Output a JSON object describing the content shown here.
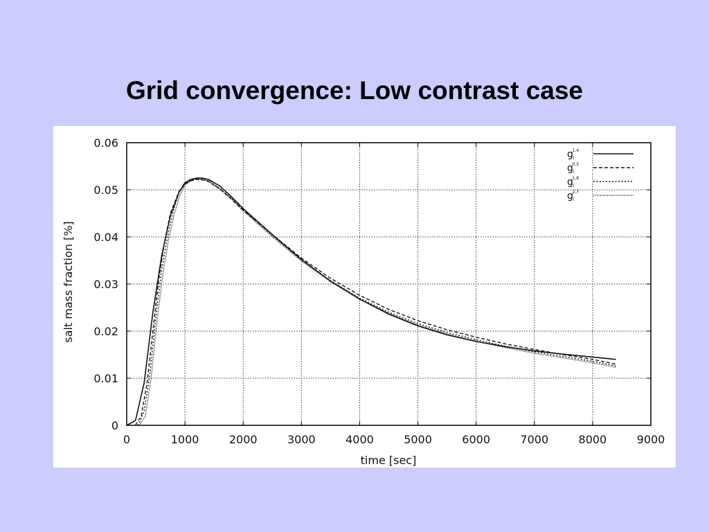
{
  "slide": {
    "title": "Grid convergence: Low contrast case"
  },
  "chart_data": {
    "type": "line",
    "title": "",
    "xlabel": "time [sec]",
    "ylabel": "salt mass fraction [%]",
    "xlim": [
      0,
      9000
    ],
    "ylim": [
      0,
      0.06
    ],
    "xticks": [
      0,
      1000,
      2000,
      3000,
      4000,
      5000,
      6000,
      7000,
      8000,
      9000
    ],
    "yticks": [
      0,
      0.01,
      0.02,
      0.03,
      0.04,
      0.05,
      0.06
    ],
    "xtick_labels": [
      "0",
      "1000",
      "2000",
      "3000",
      "4000",
      "5000",
      "6000",
      "7000",
      "8000",
      "9000"
    ],
    "ytick_labels": [
      "0",
      "0.01",
      "0.02",
      "0.03",
      "0.04",
      "0.05",
      "0.06"
    ],
    "grid": true,
    "legend_position": "top-right",
    "series": [
      {
        "name": "g^{1,4}",
        "legend_base": "g",
        "legend_sub": "l",
        "legend_sup": "1,4",
        "dash": "solid",
        "x": [
          0,
          150,
          300,
          450,
          600,
          750,
          900,
          1000,
          1100,
          1200,
          1300,
          1400,
          1600,
          1800,
          2000,
          2500,
          3000,
          3500,
          4000,
          4500,
          5000,
          5500,
          6000,
          6500,
          7000,
          7500,
          8000,
          8400
        ],
        "y": [
          0,
          0.001,
          0.009,
          0.024,
          0.036,
          0.0445,
          0.0495,
          0.0515,
          0.0522,
          0.0525,
          0.0525,
          0.0522,
          0.0508,
          0.0485,
          0.046,
          0.0405,
          0.0352,
          0.0306,
          0.0268,
          0.0236,
          0.0211,
          0.0192,
          0.0178,
          0.0167,
          0.0158,
          0.0151,
          0.0145,
          0.014
        ]
      },
      {
        "name": "g^{0,5}",
        "legend_base": "g",
        "legend_sub": "l",
        "legend_sup": "0,5",
        "dash": "dashed",
        "x": [
          150,
          250,
          350,
          450,
          550,
          650,
          750,
          900,
          1000,
          1100,
          1200,
          1300,
          1400,
          1600,
          1800,
          2000,
          2500,
          3000,
          3500,
          4000,
          4500,
          5000,
          5500,
          6000,
          6500,
          7000,
          7500,
          8000,
          8400
        ],
        "y": [
          0,
          0.002,
          0.009,
          0.02,
          0.031,
          0.039,
          0.045,
          0.0497,
          0.0512,
          0.0519,
          0.0522,
          0.0521,
          0.0518,
          0.0502,
          0.048,
          0.0457,
          0.0405,
          0.0355,
          0.0312,
          0.0276,
          0.0246,
          0.0222,
          0.0203,
          0.0187,
          0.0173,
          0.0161,
          0.015,
          0.014,
          0.013
        ]
      },
      {
        "name": "g^{1,8}",
        "legend_base": "g",
        "legend_sub": "l",
        "legend_sup": "1,8",
        "dash": "dotted",
        "x": [
          200,
          300,
          400,
          500,
          600,
          700,
          800,
          900,
          1000,
          1100,
          1200,
          1300,
          1400,
          1600,
          1800,
          2000,
          2500,
          3000,
          3500,
          4000,
          4500,
          5000,
          5500,
          6000,
          6500,
          7000,
          7500,
          8000,
          8400
        ],
        "y": [
          0,
          0.003,
          0.011,
          0.023,
          0.033,
          0.04,
          0.0455,
          0.0495,
          0.0512,
          0.052,
          0.0524,
          0.0523,
          0.0519,
          0.0503,
          0.0482,
          0.0458,
          0.0403,
          0.0351,
          0.0307,
          0.027,
          0.024,
          0.0216,
          0.0197,
          0.0182,
          0.0168,
          0.0156,
          0.0146,
          0.0136,
          0.0126
        ]
      },
      {
        "name": "g^{2,7}",
        "legend_base": "g",
        "legend_sub": "l",
        "legend_sup": "2,7",
        "dash": "densedot",
        "x": [
          220,
          320,
          420,
          520,
          620,
          720,
          820,
          920,
          1000,
          1100,
          1200,
          1300,
          1400,
          1600,
          1800,
          2000,
          2500,
          3000,
          3500,
          4000,
          4500,
          5000,
          5500,
          6000,
          6500,
          7000,
          7500,
          8000,
          8400
        ],
        "y": [
          0,
          0.002,
          0.01,
          0.022,
          0.032,
          0.0395,
          0.045,
          0.049,
          0.051,
          0.0519,
          0.0523,
          0.0522,
          0.0518,
          0.0501,
          0.048,
          0.0455,
          0.04,
          0.0349,
          0.0305,
          0.0268,
          0.0238,
          0.0213,
          0.0194,
          0.0179,
          0.0165,
          0.0153,
          0.0143,
          0.0133,
          0.0123
        ]
      }
    ]
  }
}
